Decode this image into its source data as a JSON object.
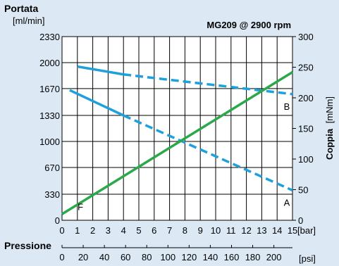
{
  "chart_data": {
    "type": "line",
    "title": "MG209 @ 2900 rpm",
    "ylabel_left": "Portata",
    "ylabel_left_unit": "[ml/min]",
    "ylabel_right_bold": "Coppia",
    "ylabel_right_unit": "[mNm]",
    "xlabel": "Pressione",
    "x_unit": "[bar]",
    "x2_unit": "[psi]",
    "xlim": [
      0,
      15
    ],
    "ylim_left": [
      0,
      2330
    ],
    "ylim_right": [
      0,
      300
    ],
    "x_ticks": [
      "0",
      "1",
      "2",
      "3",
      "4",
      "5",
      "6",
      "7",
      "8",
      "9",
      "10",
      "11",
      "12",
      "13",
      "14",
      "15"
    ],
    "y_left_ticks": [
      {
        "label": "0",
        "value": 0
      },
      {
        "label": "330",
        "value": 330
      },
      {
        "label": "670",
        "value": 670
      },
      {
        "label": "1000",
        "value": 1000
      },
      {
        "label": "1330",
        "value": 1330
      },
      {
        "label": "1670",
        "value": 1670
      },
      {
        "label": "2000",
        "value": 2000
      },
      {
        "label": "2330",
        "value": 2330
      }
    ],
    "y_right_ticks": [
      {
        "label": "0",
        "value": 0
      },
      {
        "label": "50",
        "value": 50
      },
      {
        "label": "100",
        "value": 100
      },
      {
        "label": "150",
        "value": 150
      },
      {
        "label": "200",
        "value": 200
      },
      {
        "label": "250",
        "value": 250
      },
      {
        "label": "300",
        "value": 300
      }
    ],
    "psi_ticks": [
      {
        "label": "0",
        "value": 0
      },
      {
        "label": "20",
        "value": 20
      },
      {
        "label": "40",
        "value": 40
      },
      {
        "label": "60",
        "value": 60
      },
      {
        "label": "80",
        "value": 80
      },
      {
        "label": "100",
        "value": 100
      },
      {
        "label": "120",
        "value": 120
      },
      {
        "label": "140",
        "value": 140
      },
      {
        "label": "160",
        "value": 160
      },
      {
        "label": "180",
        "value": 180
      },
      {
        "label": "200",
        "value": 200
      }
    ],
    "series": [
      {
        "name": "B",
        "axis": "left",
        "color": "#1ea0dc",
        "solid": [
          [
            1,
            1950
          ],
          [
            4,
            1850
          ]
        ],
        "dashed": [
          [
            4,
            1850
          ],
          [
            15,
            1600
          ]
        ]
      },
      {
        "name": "A",
        "axis": "left",
        "color": "#1ea0dc",
        "solid": [
          [
            0.5,
            1650
          ],
          [
            4,
            1330
          ]
        ],
        "dashed": [
          [
            4,
            1330
          ],
          [
            15,
            380
          ]
        ]
      },
      {
        "name": "F",
        "axis": "right",
        "color": "#2aa84a",
        "solid": [
          [
            0,
            10
          ],
          [
            15,
            242
          ]
        ],
        "dashed": []
      }
    ]
  }
}
